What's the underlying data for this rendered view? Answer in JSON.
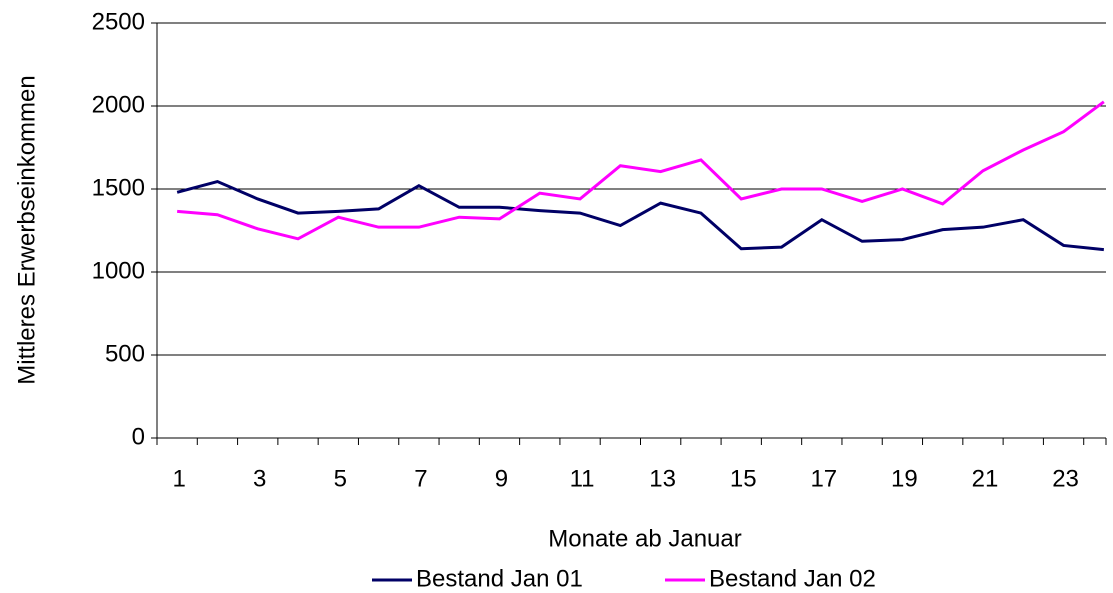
{
  "chart_data": {
    "type": "line",
    "x_label": "Monate ab Januar",
    "y_label": "Mittleres Erwerbseinkommen",
    "categories": [
      1,
      null,
      3,
      null,
      5,
      null,
      7,
      null,
      9,
      null,
      11,
      null,
      13,
      null,
      15,
      null,
      17,
      null,
      19,
      null,
      21,
      null,
      23,
      null
    ],
    "series": [
      {
        "name": "Bestand Jan 01",
        "color": "#000066",
        "values": [
          1480,
          1545,
          1440,
          1355,
          1365,
          1380,
          1520,
          1390,
          1390,
          1370,
          1355,
          1280,
          1415,
          1355,
          1140,
          1150,
          1315,
          1185,
          1195,
          1255,
          1270,
          1315,
          1160,
          1135
        ]
      },
      {
        "name": "Bestand Jan 02",
        "color": "#ff00ff",
        "values": [
          1365,
          1345,
          1260,
          1200,
          1330,
          1270,
          1270,
          1330,
          1320,
          1475,
          1440,
          1640,
          1605,
          1675,
          1440,
          1500,
          1500,
          1425,
          1500,
          1410,
          1610,
          1735,
          1845,
          2025
        ]
      }
    ],
    "ylim": [
      0,
      2500
    ],
    "yticks": [
      0,
      500,
      1000,
      1500,
      2000,
      2500
    ],
    "grid": true,
    "legend": "bottom"
  }
}
